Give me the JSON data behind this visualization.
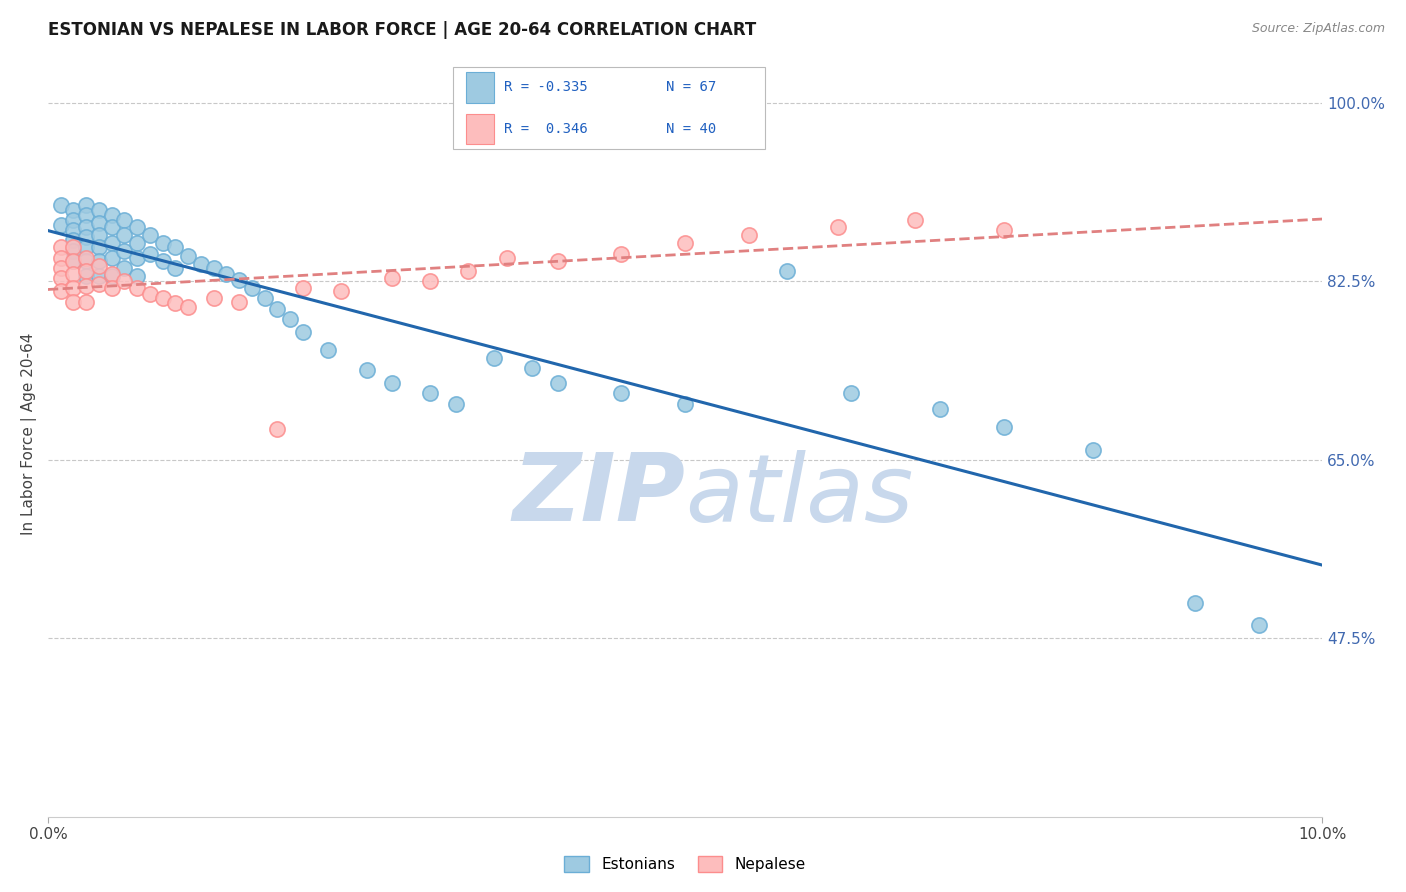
{
  "title": "ESTONIAN VS NEPALESE IN LABOR FORCE | AGE 20-64 CORRELATION CHART",
  "source_text": "Source: ZipAtlas.com",
  "ylabel": "In Labor Force | Age 20-64",
  "xlim": [
    0.0,
    0.1
  ],
  "ylim": [
    0.3,
    1.05
  ],
  "xtick_positions": [
    0.0,
    0.1
  ],
  "xtick_labels": [
    "0.0%",
    "10.0%"
  ],
  "ytick_positions": [
    0.475,
    0.65,
    0.825,
    1.0
  ],
  "ytick_labels": [
    "47.5%",
    "65.0%",
    "82.5%",
    "100.0%"
  ],
  "color_estonian": "#6baed6",
  "color_estonian_fill": "#9ecae1",
  "color_nepalese": "#fc8d8d",
  "color_nepalese_fill": "#fdbdbd",
  "trend_color_estonian": "#2166ac",
  "trend_color_nepalese": "#e08080",
  "watermark_color": "#c8d8ec",
  "grid_color": "#c8c8c8",
  "background_color": "#ffffff",
  "estonian_x": [
    0.001,
    0.001,
    0.002,
    0.002,
    0.002,
    0.002,
    0.002,
    0.002,
    0.003,
    0.003,
    0.003,
    0.003,
    0.003,
    0.003,
    0.003,
    0.004,
    0.004,
    0.004,
    0.004,
    0.004,
    0.004,
    0.005,
    0.005,
    0.005,
    0.005,
    0.005,
    0.006,
    0.006,
    0.006,
    0.006,
    0.007,
    0.007,
    0.007,
    0.007,
    0.008,
    0.008,
    0.009,
    0.009,
    0.01,
    0.01,
    0.011,
    0.012,
    0.013,
    0.014,
    0.015,
    0.016,
    0.017,
    0.018,
    0.019,
    0.02,
    0.022,
    0.025,
    0.027,
    0.03,
    0.032,
    0.035,
    0.038,
    0.04,
    0.045,
    0.05,
    0.058,
    0.063,
    0.07,
    0.075,
    0.082,
    0.09,
    0.095
  ],
  "estonian_y": [
    0.9,
    0.88,
    0.895,
    0.885,
    0.875,
    0.865,
    0.855,
    0.845,
    0.9,
    0.89,
    0.878,
    0.868,
    0.858,
    0.845,
    0.83,
    0.895,
    0.882,
    0.87,
    0.858,
    0.845,
    0.83,
    0.89,
    0.878,
    0.862,
    0.848,
    0.83,
    0.885,
    0.87,
    0.855,
    0.838,
    0.878,
    0.862,
    0.848,
    0.83,
    0.87,
    0.852,
    0.862,
    0.845,
    0.858,
    0.838,
    0.85,
    0.842,
    0.838,
    0.832,
    0.826,
    0.818,
    0.808,
    0.798,
    0.788,
    0.775,
    0.758,
    0.738,
    0.725,
    0.715,
    0.705,
    0.75,
    0.74,
    0.725,
    0.715,
    0.705,
    0.835,
    0.715,
    0.7,
    0.682,
    0.66,
    0.51,
    0.488
  ],
  "nepalese_x": [
    0.001,
    0.001,
    0.001,
    0.001,
    0.001,
    0.002,
    0.002,
    0.002,
    0.002,
    0.002,
    0.003,
    0.003,
    0.003,
    0.003,
    0.004,
    0.004,
    0.005,
    0.005,
    0.006,
    0.007,
    0.008,
    0.009,
    0.01,
    0.011,
    0.013,
    0.015,
    0.018,
    0.02,
    0.023,
    0.027,
    0.03,
    0.033,
    0.036,
    0.04,
    0.045,
    0.05,
    0.055,
    0.062,
    0.068,
    0.075
  ],
  "nepalese_y": [
    0.858,
    0.848,
    0.838,
    0.828,
    0.815,
    0.858,
    0.845,
    0.832,
    0.818,
    0.805,
    0.848,
    0.835,
    0.82,
    0.805,
    0.84,
    0.822,
    0.832,
    0.818,
    0.825,
    0.818,
    0.812,
    0.808,
    0.804,
    0.8,
    0.808,
    0.805,
    0.68,
    0.818,
    0.815,
    0.828,
    0.825,
    0.835,
    0.848,
    0.845,
    0.852,
    0.862,
    0.87,
    0.878,
    0.885,
    0.875
  ]
}
